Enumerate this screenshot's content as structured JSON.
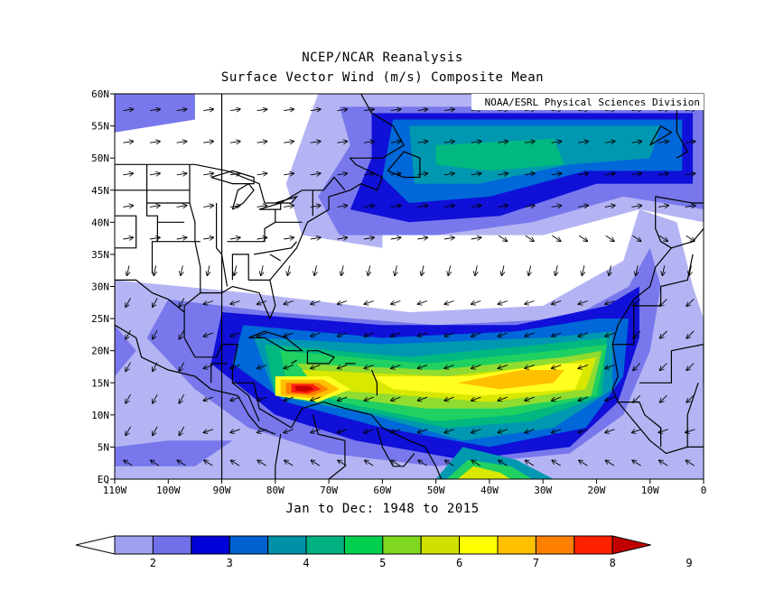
{
  "title_line1": "NCEP/NCAR Reanalysis",
  "title_line2": "Surface Vector Wind (m/s) Composite Mean",
  "credit": "NOAA/ESRL Physical Sciences Division",
  "subtitle": "Jan to Dec: 1948 to 2015",
  "lat_ticks": [
    "60N",
    "55N",
    "50N",
    "45N",
    "40N",
    "35N",
    "30N",
    "25N",
    "20N",
    "15N",
    "10N",
    "5N",
    "EQ"
  ],
  "lon_ticks": [
    "110W",
    "100W",
    "90W",
    "80W",
    "70W",
    "60W",
    "50W",
    "40W",
    "30W",
    "20W",
    "10W",
    "0"
  ],
  "colorbar": {
    "labels": [
      "2",
      "3",
      "4",
      "5",
      "6",
      "7",
      "8",
      "9"
    ],
    "colors": [
      "#a0a0f0",
      "#7070e8",
      "#0000d8",
      "#0060d0",
      "#0090a8",
      "#00b080",
      "#00d050",
      "#80d820",
      "#d0e000",
      "#ffff00",
      "#ffc000",
      "#ff8000",
      "#ff2000",
      "#c00000"
    ]
  },
  "colors": {
    "c2": "#b4b4f4",
    "c3": "#7878ec",
    "c4": "#1010d8",
    "c45": "#0068d8",
    "c5": "#0098b0",
    "c55": "#00b880",
    "c6": "#20d060",
    "c65": "#90dc30",
    "c7": "#d8e800",
    "c75": "#ffff20",
    "c8": "#ffc000",
    "c85": "#ff8000",
    "c9": "#ff2010",
    "c95": "#c80000"
  }
}
